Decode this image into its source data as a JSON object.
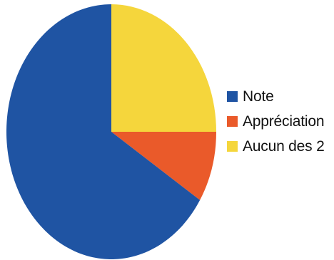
{
  "chart_data": {
    "type": "pie",
    "title": "",
    "slices": [
      {
        "label": "Note",
        "value": 66,
        "color": "#1f54a3"
      },
      {
        "label": "Appréciation",
        "value": 9,
        "color": "#ea5a2a"
      },
      {
        "label": "Aucun des 2",
        "value": 25,
        "color": "#f5d63c"
      }
    ],
    "start_angle_deg": 0,
    "direction": "counterclockwise",
    "legend_position": "right"
  },
  "legend": {
    "items": [
      {
        "label": "Note",
        "color": "#1f54a3"
      },
      {
        "label": "Appréciation",
        "color": "#ea5a2a"
      },
      {
        "label": "Aucun des 2",
        "color": "#f5d63c"
      }
    ]
  }
}
